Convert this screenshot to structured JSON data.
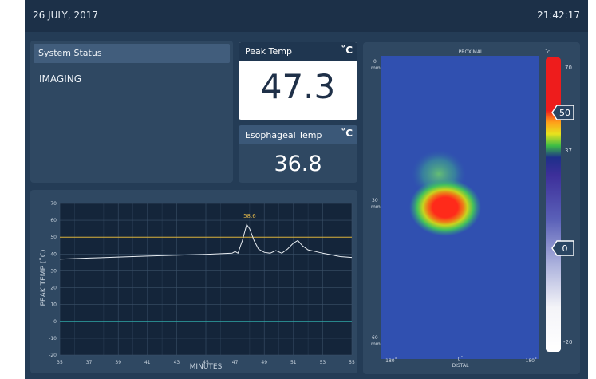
{
  "header": {
    "date": "26 JULY, 2017",
    "time": "21:42:17"
  },
  "status": {
    "title": "System Status",
    "value": "IMAGING"
  },
  "peak": {
    "label": "Peak Temp",
    "unit": "˚C",
    "value": "47.3"
  },
  "esophageal": {
    "label": "Esophageal Temp",
    "unit": "˚C",
    "value": "36.8"
  },
  "chart_data": {
    "type": "line",
    "xlabel": "MINUTES",
    "ylabel": "PEAK TEMP (˚C)",
    "xlim": [
      35,
      55
    ],
    "ylim": [
      -20,
      70
    ],
    "x_ticks": [
      "35",
      "37",
      "39",
      "41",
      "43",
      "45",
      "47",
      "49",
      "51",
      "53",
      "55"
    ],
    "y_ticks": [
      "70",
      "60",
      "50",
      "40",
      "30",
      "20",
      "10",
      "0",
      "-10",
      "-20"
    ],
    "grid": true,
    "reference_lines": [
      {
        "y": 50,
        "color": "#d9b13a"
      },
      {
        "y": 0,
        "color": "#2fa6a6"
      }
    ],
    "annotation": {
      "text": "58.6",
      "x": 47.9,
      "y": 58.6,
      "color": "#e0b64a"
    },
    "series": [
      {
        "color": "#e8edf2",
        "x": [
          35,
          37,
          39,
          41,
          43,
          45,
          46.8,
          47.0,
          47.2,
          47.5,
          47.8,
          48.0,
          48.3,
          48.6,
          49.0,
          49.4,
          49.8,
          50.2,
          50.6,
          51.0,
          51.3,
          51.6,
          52.0,
          52.5,
          53.0,
          53.6,
          54.2,
          55
        ],
        "y": [
          37,
          37.6,
          38.2,
          38.8,
          39.3,
          39.8,
          40.5,
          41.5,
          40.5,
          48,
          57.5,
          55,
          48,
          43,
          41,
          40.5,
          42,
          40.5,
          43,
          46.5,
          48,
          45,
          42.5,
          41.5,
          40.5,
          39.5,
          38.5,
          38
        ]
      }
    ]
  },
  "thermal_map": {
    "top_label": "PROXIMAL",
    "bottom_label": "DISTAL",
    "y_labels": [
      {
        "value": "0",
        "unit": "mm"
      },
      {
        "value": "30",
        "unit": "mm"
      },
      {
        "value": "60",
        "unit": "mm"
      }
    ],
    "x_labels": [
      "-180˚",
      "0˚",
      "180˚"
    ],
    "scale_unit": "˚c",
    "scale_ticks": [
      "70",
      "37",
      "-20"
    ],
    "upper_marker": "50",
    "lower_marker": "0",
    "colors": {
      "background": "#3050b0",
      "hot": "#ee1c1c"
    }
  }
}
